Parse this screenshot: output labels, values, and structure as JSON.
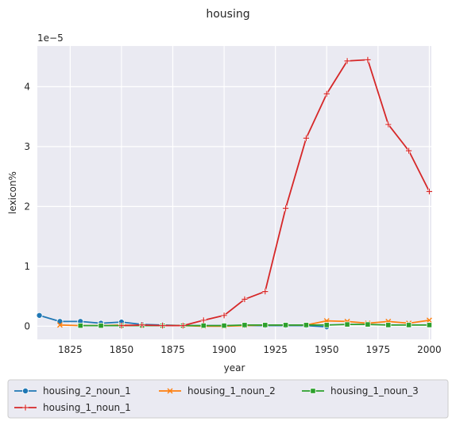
{
  "chart_data": {
    "type": "line",
    "title": "housing",
    "xlabel": "year",
    "ylabel": "lexicon%",
    "y_offset_label": "1e−5",
    "xlim": [
      1809,
      2001
    ],
    "ylim": [
      -0.22,
      4.68
    ],
    "x_ticks": [
      1825,
      1850,
      1875,
      1900,
      1925,
      1950,
      1975,
      2000
    ],
    "y_ticks": [
      0,
      1,
      2,
      3,
      4
    ],
    "grid": true,
    "legend_position": "below",
    "series": [
      {
        "name": "housing_2_noun_1",
        "color": "#1f77b4",
        "marker": "circle",
        "points": [
          [
            1810,
            0.18
          ],
          [
            1820,
            0.08
          ],
          [
            1830,
            0.08
          ],
          [
            1840,
            0.05
          ],
          [
            1850,
            0.07
          ],
          [
            1860,
            0.03
          ],
          [
            1870,
            0.02
          ],
          [
            1880,
            0.01
          ],
          [
            1890,
            0.01
          ],
          [
            1900,
            0.01
          ],
          [
            1910,
            0.01
          ],
          [
            1920,
            0.01
          ],
          [
            1930,
            0.01
          ],
          [
            1940,
            0.01
          ],
          [
            1950,
            -0.01
          ]
        ]
      },
      {
        "name": "housing_1_noun_2",
        "color": "#ff7f0e",
        "marker": "x",
        "points": [
          [
            1820,
            0.02
          ],
          [
            1830,
            0.01
          ],
          [
            1840,
            0.01
          ],
          [
            1850,
            0.02
          ],
          [
            1860,
            0.01
          ],
          [
            1870,
            0.01
          ],
          [
            1880,
            0.01
          ],
          [
            1890,
            0.0
          ],
          [
            1900,
            0.0
          ],
          [
            1910,
            0.01
          ],
          [
            1920,
            0.02
          ],
          [
            1930,
            0.02
          ],
          [
            1940,
            0.02
          ],
          [
            1950,
            0.09
          ],
          [
            1960,
            0.08
          ],
          [
            1970,
            0.05
          ],
          [
            1980,
            0.08
          ],
          [
            1990,
            0.05
          ],
          [
            2000,
            0.1
          ]
        ]
      },
      {
        "name": "housing_1_noun_3",
        "color": "#2ca02c",
        "marker": "square",
        "points": [
          [
            1830,
            0.01
          ],
          [
            1840,
            0.01
          ],
          [
            1850,
            0.01
          ],
          [
            1860,
            0.01
          ],
          [
            1870,
            0.01
          ],
          [
            1880,
            0.01
          ],
          [
            1890,
            0.01
          ],
          [
            1900,
            0.01
          ],
          [
            1910,
            0.02
          ],
          [
            1920,
            0.02
          ],
          [
            1930,
            0.02
          ],
          [
            1940,
            0.02
          ],
          [
            1950,
            0.02
          ],
          [
            1960,
            0.03
          ],
          [
            1970,
            0.03
          ],
          [
            1980,
            0.02
          ],
          [
            1990,
            0.02
          ],
          [
            2000,
            0.02
          ]
        ]
      },
      {
        "name": "housing_1_noun_1",
        "color": "#d62728",
        "marker": "plus",
        "points": [
          [
            1850,
            0.01
          ],
          [
            1860,
            0.02
          ],
          [
            1870,
            0.01
          ],
          [
            1880,
            0.01
          ],
          [
            1890,
            0.1
          ],
          [
            1900,
            0.18
          ],
          [
            1910,
            0.45
          ],
          [
            1920,
            0.58
          ],
          [
            1930,
            1.97
          ],
          [
            1940,
            3.14
          ],
          [
            1950,
            3.88
          ],
          [
            1960,
            4.43
          ],
          [
            1970,
            4.45
          ],
          [
            1980,
            3.37
          ],
          [
            1990,
            2.93
          ],
          [
            2000,
            2.25
          ]
        ]
      }
    ]
  }
}
